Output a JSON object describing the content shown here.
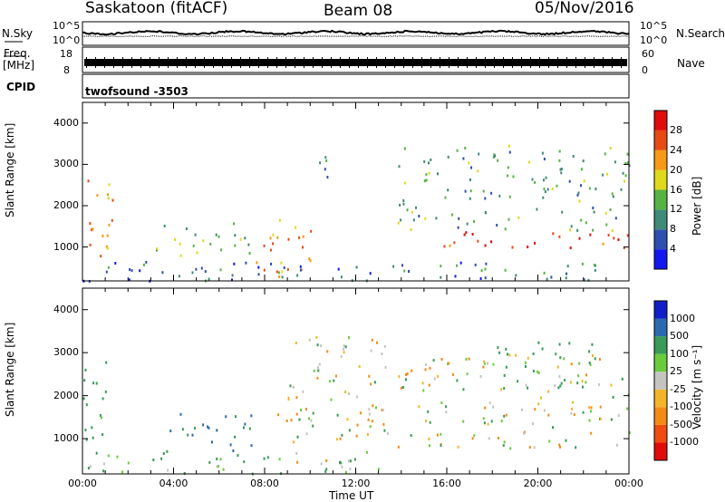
{
  "header": {
    "station": "Saskatoon (fitACF)",
    "beam": "Beam 08",
    "date": "05/Nov/2016"
  },
  "noise_panel": {
    "left_label": "N.Sky",
    "right_label": "N.Search",
    "ticks_top": "10^5",
    "ticks_bottom": "10^0"
  },
  "freq_panel": {
    "left_label_line1": "Freq.",
    "left_label_line2": "[MHz]",
    "left_tick_top": "18",
    "left_tick_bottom": "8",
    "right_label": "Nave",
    "right_tick_top": "60",
    "right_tick_bottom": "0"
  },
  "cpid_panel": {
    "label": "CPID",
    "value": "twofsound -3503"
  },
  "chart_data": [
    {
      "type": "heatmap",
      "name": "power",
      "ylabel": "Slant Range [km]",
      "yticks": [
        "1000",
        "2000",
        "3000",
        "4000"
      ],
      "ylim": [
        180,
        4500
      ],
      "xlim_hours": [
        0,
        24
      ],
      "colorbar_label": "Power [dB]",
      "colorbar_ticks": [
        "4",
        "8",
        "12",
        "16",
        "20",
        "24",
        "28"
      ],
      "colorbar_colors": [
        "#1418f0",
        "#2e4fb0",
        "#3f8a78",
        "#57b244",
        "#e0d81c",
        "#f49a16",
        "#e84a14",
        "#e00c0c"
      ],
      "scatter_regions": [
        {
          "t_start": 0.0,
          "t_end": 1.3,
          "r_min": 600,
          "r_max": 2900,
          "level": 20
        },
        {
          "t_start": 3.2,
          "t_end": 7.5,
          "r_min": 700,
          "r_max": 1600,
          "level": 12
        },
        {
          "t_start": 7.6,
          "t_end": 10.5,
          "r_min": 300,
          "r_max": 1700,
          "level": 20
        },
        {
          "t_start": 9.8,
          "t_end": 11.0,
          "r_min": 2700,
          "r_max": 3500,
          "level": 8
        },
        {
          "t_start": 13.8,
          "t_end": 24.0,
          "r_min": 1000,
          "r_max": 1400,
          "level": 26
        },
        {
          "t_start": 13.8,
          "t_end": 24.0,
          "r_min": 1400,
          "r_max": 3500,
          "level": 10
        },
        {
          "t_start": 0.0,
          "t_end": 24.0,
          "r_min": 200,
          "r_max": 700,
          "level": 6
        }
      ]
    },
    {
      "type": "heatmap",
      "name": "velocity",
      "ylabel": "Slant Range [km]",
      "yticks": [
        "1000",
        "2000",
        "3000",
        "4000"
      ],
      "ylim": [
        180,
        4500
      ],
      "xlim_hours": [
        0,
        24
      ],
      "xticks": [
        "00:00",
        "04:00",
        "08:00",
        "12:00",
        "16:00",
        "20:00",
        "00:00"
      ],
      "xlabel": "Time UT",
      "colorbar_label": "Velocity [m s⁻¹]",
      "colorbar_ticks": [
        "1000",
        "500",
        "100",
        "25",
        "-25",
        "-100",
        "-500",
        "-1000"
      ],
      "colorbar_colors": [
        "#1020c8",
        "#2c6ab0",
        "#3a9a58",
        "#6acc3c",
        "#c4c4c0",
        "#f4b428",
        "#f48a14",
        "#f04c10",
        "#e00c0c"
      ],
      "scatter_regions": [
        {
          "t_start": 0.0,
          "t_end": 1.3,
          "r_min": 600,
          "r_max": 2900,
          "v": 150
        },
        {
          "t_start": 3.2,
          "t_end": 7.5,
          "r_min": 700,
          "r_max": 1600,
          "v": 300
        },
        {
          "t_start": 8.5,
          "t_end": 9.5,
          "r_min": 1200,
          "r_max": 1800,
          "v": -300
        },
        {
          "t_start": 9.0,
          "t_end": 13.5,
          "r_min": 300,
          "r_max": 3500,
          "v": 0
        },
        {
          "t_start": 13.8,
          "t_end": 24.0,
          "r_min": 800,
          "r_max": 3000,
          "v": 0
        },
        {
          "t_start": 18.0,
          "t_end": 22.5,
          "r_min": 2200,
          "r_max": 3300,
          "v": 150
        },
        {
          "t_start": 0.0,
          "t_end": 12.0,
          "r_min": 200,
          "r_max": 700,
          "v": 80
        }
      ]
    }
  ]
}
